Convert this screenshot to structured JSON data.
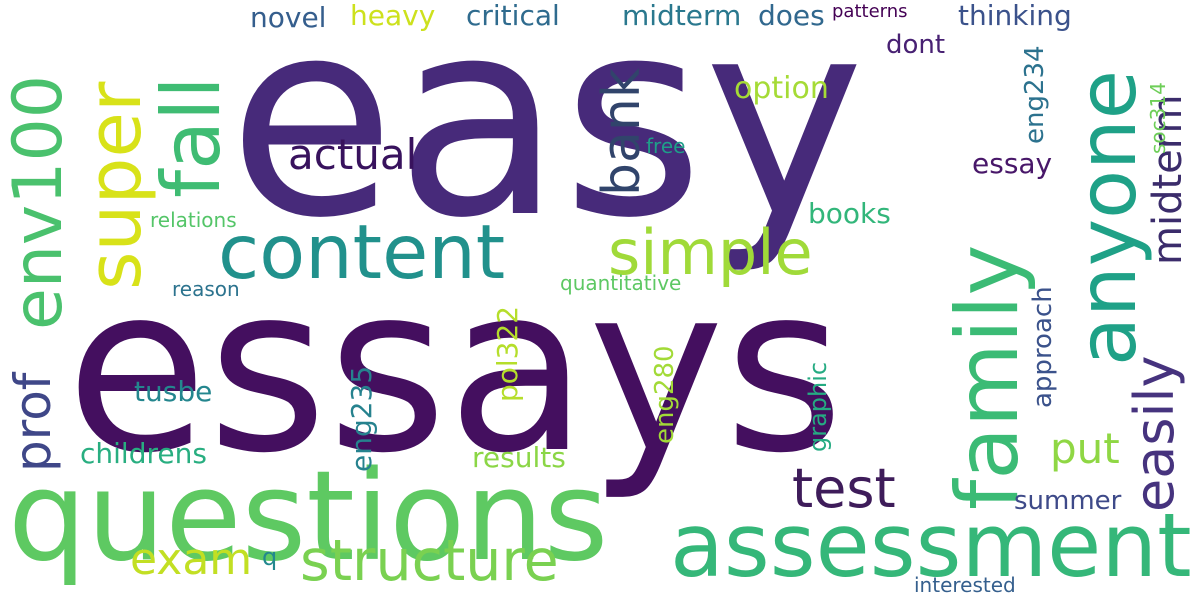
{
  "words": [
    {
      "text": "easy",
      "color": "#472a7a"
    },
    {
      "text": "essays",
      "color": "#440f5f"
    },
    {
      "text": "questions",
      "color": "#5ec962"
    },
    {
      "text": "assessment",
      "color": "#35b779"
    },
    {
      "text": "content",
      "color": "#21918c"
    },
    {
      "text": "structure",
      "color": "#7ad151"
    },
    {
      "text": "family",
      "color": "#3bbb75"
    },
    {
      "text": "anyone",
      "color": "#1fa187"
    },
    {
      "text": "simple",
      "color": "#a0da39"
    },
    {
      "text": "fall",
      "color": "#3fbc73"
    },
    {
      "text": "super",
      "color": "#d8e219"
    },
    {
      "text": "env100",
      "color": "#4ac16d"
    },
    {
      "text": "test",
      "color": "#3e1c5a"
    },
    {
      "text": "easily",
      "color": "#46337e"
    },
    {
      "text": "midterm",
      "color": "#3b2c6b"
    },
    {
      "text": "bank",
      "color": "#31446b"
    },
    {
      "text": "actual",
      "color": "#38125d"
    },
    {
      "text": "prof",
      "color": "#3f4788"
    },
    {
      "text": "exam",
      "color": "#c2df23"
    },
    {
      "text": "put",
      "color": "#8fd744"
    },
    {
      "text": "critical",
      "color": "#2f6b8e"
    },
    {
      "text": "midterm",
      "color": "#2a788e"
    },
    {
      "text": "does",
      "color": "#31688e"
    },
    {
      "text": "novel",
      "color": "#355e8d"
    },
    {
      "text": "heavy",
      "color": "#cde11d"
    },
    {
      "text": "thinking",
      "color": "#3b528b"
    },
    {
      "text": "patterns",
      "color": "#440154"
    },
    {
      "text": "dont",
      "color": "#482173"
    },
    {
      "text": "option",
      "color": "#a5db36"
    },
    {
      "text": "eng234",
      "color": "#2c728e"
    },
    {
      "text": "essay",
      "color": "#481769"
    },
    {
      "text": "soc314",
      "color": "#6ece58"
    },
    {
      "text": "free",
      "color": "#1f9e89"
    },
    {
      "text": "books",
      "color": "#32b67a"
    },
    {
      "text": "relations",
      "color": "#54c568"
    },
    {
      "text": "reason",
      "color": "#2c738e"
    },
    {
      "text": "quantitative",
      "color": "#5dc863"
    },
    {
      "text": "approach",
      "color": "#3b528b"
    },
    {
      "text": "pol322",
      "color": "#b5de2b"
    },
    {
      "text": "eng235",
      "color": "#26828e"
    },
    {
      "text": "eng280",
      "color": "#a2da37"
    },
    {
      "text": "graphic",
      "color": "#25ab82"
    },
    {
      "text": "tusbe",
      "color": "#24868e"
    },
    {
      "text": "childrens",
      "color": "#28ae80"
    },
    {
      "text": "results",
      "color": "#8bd646"
    },
    {
      "text": "summer",
      "color": "#3e4a89"
    },
    {
      "text": "q",
      "color": "#23888e"
    },
    {
      "text": "interested",
      "color": "#355f8d"
    }
  ]
}
